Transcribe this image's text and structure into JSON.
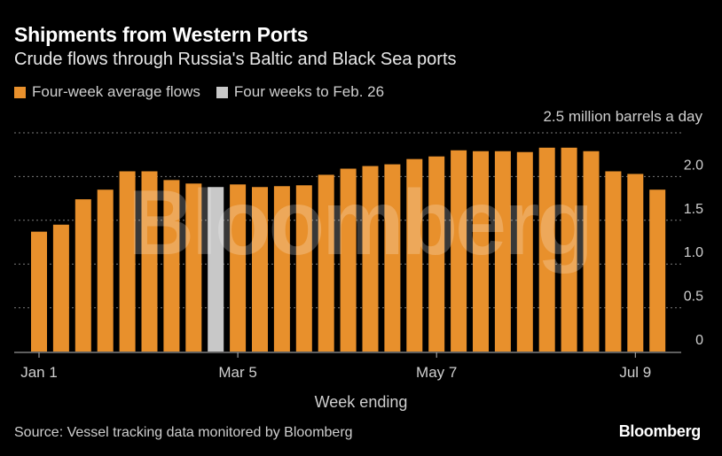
{
  "title": "Shipments from Western Ports",
  "subtitle": "Crude flows through Russia's Baltic and Black Sea ports",
  "legend": [
    {
      "label": "Four-week average flows",
      "color": "#E8902C"
    },
    {
      "label": "Four weeks to Feb. 26",
      "color": "#C8C8C8"
    }
  ],
  "unit_label": "2.5 million barrels a day",
  "x_title": "Week ending",
  "source": "Source: Vessel tracking data monitored by Bloomberg",
  "brand": "Bloomberg",
  "watermark": "Bloomberg",
  "chart_data": {
    "type": "bar",
    "title": "Shipments from Western Ports",
    "subtitle": "Crude flows through Russia's Baltic and Black Sea ports",
    "xlabel": "Week ending",
    "ylabel": "million barrels a day",
    "ylim": [
      0,
      2.5
    ],
    "yticks": [
      0,
      0.5,
      1.0,
      1.5,
      2.0,
      2.5
    ],
    "ytick_labels": [
      "0",
      "0.5",
      "1.0",
      "1.5",
      "2.0",
      "2.5"
    ],
    "grid": true,
    "xtick_labels": [
      {
        "index": 0,
        "label": "Jan 1"
      },
      {
        "index": 9,
        "label": "Mar 5"
      },
      {
        "index": 18,
        "label": "May 7"
      },
      {
        "index": 27,
        "label": "Jul 9"
      }
    ],
    "highlight_index": 8,
    "highlight_label": "Four weeks to Feb. 26",
    "series_name": "Four-week average flows",
    "colors": {
      "bar": "#E8902C",
      "highlight": "#C8C8C8",
      "grid": "#7a7a7a",
      "axis": "#bbbbbb"
    },
    "values": [
      1.37,
      1.45,
      1.74,
      1.85,
      2.06,
      2.06,
      1.96,
      1.92,
      1.88,
      1.91,
      1.88,
      1.89,
      1.9,
      2.02,
      2.09,
      2.12,
      2.14,
      2.2,
      2.23,
      2.3,
      2.29,
      2.29,
      2.28,
      2.33,
      2.33,
      2.29,
      2.06,
      2.03,
      1.85
    ]
  }
}
